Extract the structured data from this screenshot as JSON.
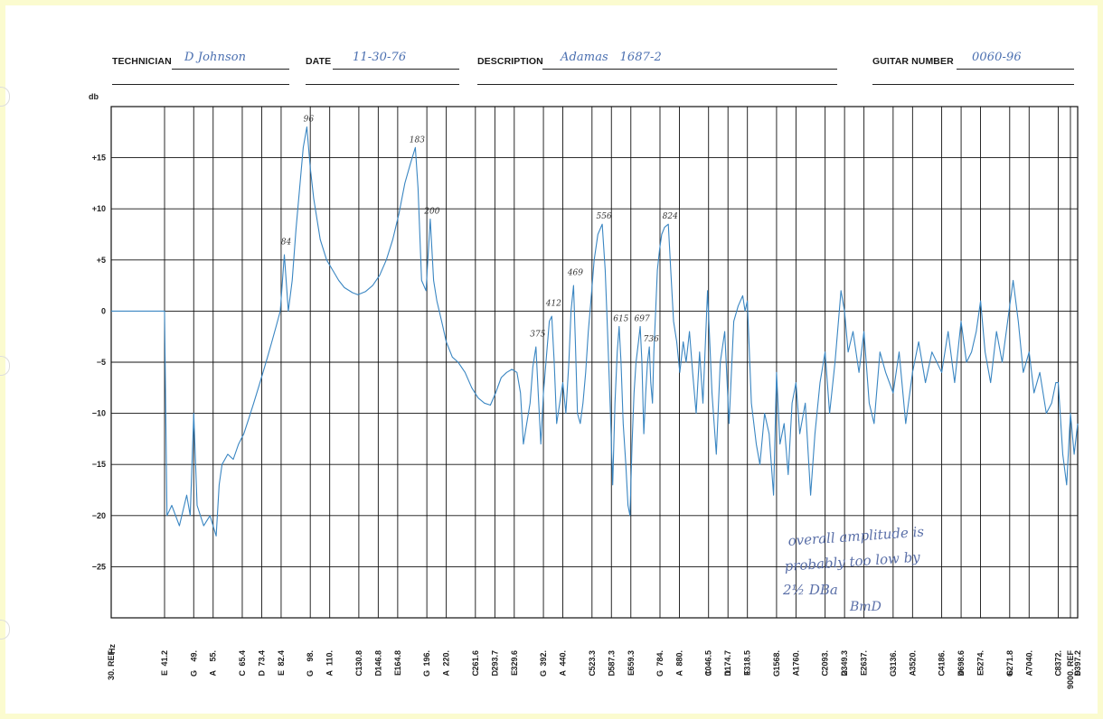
{
  "header": {
    "technician_label": "TECHNICIAN",
    "technician_value": "D Johnson",
    "date_label": "DATE",
    "date_value": "11-30-76",
    "description_label": "DESCRIPTION",
    "description_value": "Adamas   1687-2",
    "guitar_number_label": "GUITAR NUMBER",
    "guitar_number_value": "0060-96"
  },
  "annotation": {
    "line1": "overall amplitude is",
    "line2": "probably too low by",
    "line3": "2½ DBa",
    "signature": "BmD"
  },
  "chart_data": {
    "type": "line",
    "title": "",
    "xlabel": "Hz",
    "ylabel": "db",
    "ylim": [
      -30,
      20
    ],
    "yticks": [
      15,
      10,
      5,
      0,
      -5,
      -10,
      -15,
      -20,
      -25
    ],
    "ytick_labels": [
      "+15",
      "+10",
      "+5",
      "0",
      "−5",
      "−10",
      "−15",
      "−20",
      "−25"
    ],
    "x_scale": "log",
    "x_freq_ticks": [
      "30. REF",
      "41.2",
      "49.",
      "55.",
      "65.4",
      "73.4",
      "82.4",
      "98.",
      "110.",
      "130.8",
      "146.8",
      "164.8",
      "196.",
      "220.",
      "261.6",
      "293.7",
      "329.6",
      "392.",
      "440.",
      "523.3",
      "587.3",
      "659.3",
      "784.",
      "880.",
      "1046.5",
      "1174.7",
      "1318.5",
      "1568.",
      "1760.",
      "2093.",
      "2349.3",
      "2637.",
      "3136.",
      "3520.",
      "4186.",
      "4698.6",
      "5274.",
      "6271.8",
      "7040.",
      "8372.",
      "9000. REF",
      "9397.2"
    ],
    "x_note_ticks": [
      "",
      "E",
      "G",
      "A",
      "C",
      "D",
      "E",
      "G",
      "A",
      "C",
      "D",
      "E",
      "G",
      "A",
      "C",
      "D",
      "E",
      "G",
      "A",
      "C",
      "D",
      "E",
      "G",
      "A",
      "C",
      "D",
      "E",
      "G",
      "A",
      "C",
      "D",
      "E",
      "G",
      "A",
      "C",
      "D",
      "E",
      "G",
      "A",
      "C",
      "",
      "D"
    ],
    "peak_labels": [
      {
        "text": "84",
        "x": 84,
        "y": 6
      },
      {
        "text": "96",
        "x": 96,
        "y": 18
      },
      {
        "text": "183",
        "x": 183,
        "y": 16
      },
      {
        "text": "200",
        "x": 200,
        "y": 9
      },
      {
        "text": "375",
        "x": 375,
        "y": -3
      },
      {
        "text": "412",
        "x": 412,
        "y": 0
      },
      {
        "text": "469",
        "x": 469,
        "y": 3
      },
      {
        "text": "556",
        "x": 556,
        "y": 8.5
      },
      {
        "text": "615",
        "x": 615,
        "y": -1.5
      },
      {
        "text": "697",
        "x": 697,
        "y": -1.5
      },
      {
        "text": "736",
        "x": 736,
        "y": -3.5
      },
      {
        "text": "824",
        "x": 824,
        "y": 8.5
      }
    ],
    "series": [
      {
        "color": "#3a86c2",
        "points": [
          [
            30,
            0
          ],
          [
            40,
            0
          ],
          [
            41.2,
            0
          ],
          [
            41.8,
            -20
          ],
          [
            43,
            -19
          ],
          [
            45,
            -21
          ],
          [
            47,
            -18
          ],
          [
            48,
            -20
          ],
          [
            49,
            -10
          ],
          [
            50,
            -19
          ],
          [
            52,
            -21
          ],
          [
            54,
            -20
          ],
          [
            56,
            -22
          ],
          [
            57,
            -17
          ],
          [
            58,
            -15
          ],
          [
            60,
            -14
          ],
          [
            62,
            -14.5
          ],
          [
            64,
            -13
          ],
          [
            66,
            -12
          ],
          [
            68,
            -10.5
          ],
          [
            70,
            -9
          ],
          [
            72,
            -7.5
          ],
          [
            74,
            -6
          ],
          [
            76,
            -4.5
          ],
          [
            78,
            -3
          ],
          [
            80,
            -1.5
          ],
          [
            82,
            0
          ],
          [
            84,
            5.5
          ],
          [
            86,
            0
          ],
          [
            88,
            3
          ],
          [
            90,
            8
          ],
          [
            92,
            12
          ],
          [
            94,
            16
          ],
          [
            96,
            18
          ],
          [
            98,
            14
          ],
          [
            100,
            11
          ],
          [
            104,
            7
          ],
          [
            108,
            5
          ],
          [
            112,
            4
          ],
          [
            116,
            3
          ],
          [
            120,
            2.3
          ],
          [
            126,
            1.8
          ],
          [
            130,
            1.6
          ],
          [
            136,
            1.9
          ],
          [
            142,
            2.5
          ],
          [
            148,
            3.5
          ],
          [
            154,
            5
          ],
          [
            160,
            7
          ],
          [
            166,
            9.5
          ],
          [
            172,
            12.5
          ],
          [
            178,
            14.5
          ],
          [
            183,
            16
          ],
          [
            186,
            12
          ],
          [
            190,
            3
          ],
          [
            195,
            2
          ],
          [
            200,
            9
          ],
          [
            204,
            3
          ],
          [
            208,
            1
          ],
          [
            214,
            -1
          ],
          [
            220,
            -3
          ],
          [
            228,
            -4.5
          ],
          [
            236,
            -5
          ],
          [
            246,
            -6
          ],
          [
            256,
            -7.5
          ],
          [
            266,
            -8.5
          ],
          [
            276,
            -9
          ],
          [
            286,
            -9.2
          ],
          [
            295,
            -8
          ],
          [
            305,
            -6.5
          ],
          [
            315,
            -6
          ],
          [
            325,
            -5.7
          ],
          [
            335,
            -6
          ],
          [
            342,
            -8
          ],
          [
            348,
            -13
          ],
          [
            355,
            -11
          ],
          [
            362,
            -9
          ],
          [
            368,
            -5.5
          ],
          [
            375,
            -3.5
          ],
          [
            380,
            -8
          ],
          [
            386,
            -13
          ],
          [
            392,
            -8
          ],
          [
            400,
            -4
          ],
          [
            406,
            -1
          ],
          [
            412,
            -0.5
          ],
          [
            418,
            -5
          ],
          [
            424,
            -11
          ],
          [
            432,
            -9
          ],
          [
            440,
            -7
          ],
          [
            448,
            -10
          ],
          [
            456,
            -5
          ],
          [
            462,
            0
          ],
          [
            469,
            2.5
          ],
          [
            474,
            -3
          ],
          [
            480,
            -10
          ],
          [
            488,
            -11
          ],
          [
            496,
            -9
          ],
          [
            504,
            -6
          ],
          [
            512,
            -2
          ],
          [
            520,
            1
          ],
          [
            530,
            5
          ],
          [
            542,
            7.5
          ],
          [
            556,
            8.5
          ],
          [
            566,
            4
          ],
          [
            574,
            -2
          ],
          [
            584,
            -10
          ],
          [
            592,
            -17
          ],
          [
            600,
            -9
          ],
          [
            608,
            -4
          ],
          [
            615,
            -1.5
          ],
          [
            622,
            -5
          ],
          [
            630,
            -11
          ],
          [
            640,
            -15
          ],
          [
            648,
            -19
          ],
          [
            656,
            -20
          ],
          [
            664,
            -13
          ],
          [
            672,
            -8
          ],
          [
            680,
            -5
          ],
          [
            690,
            -3
          ],
          [
            697,
            -1.5
          ],
          [
            704,
            -5
          ],
          [
            712,
            -12
          ],
          [
            720,
            -8
          ],
          [
            728,
            -5
          ],
          [
            736,
            -3.5
          ],
          [
            742,
            -7
          ],
          [
            750,
            -9
          ],
          [
            756,
            -4
          ],
          [
            764,
            0
          ],
          [
            772,
            4
          ],
          [
            782,
            6
          ],
          [
            792,
            7.5
          ],
          [
            806,
            8.2
          ],
          [
            824,
            8.5
          ],
          [
            836,
            4
          ],
          [
            850,
            -1
          ],
          [
            866,
            -3
          ],
          [
            882,
            -6
          ],
          [
            900,
            -3
          ],
          [
            916,
            -5
          ],
          [
            934,
            -2
          ],
          [
            952,
            -6
          ],
          [
            972,
            -10
          ],
          [
            992,
            -4
          ],
          [
            1012,
            -9
          ],
          [
            1040,
            2
          ],
          [
            1068,
            -8
          ],
          [
            1096,
            -14
          ],
          [
            1122,
            -5
          ],
          [
            1152,
            -2
          ],
          [
            1182,
            -11
          ],
          [
            1216,
            -1
          ],
          [
            1248,
            0.5
          ],
          [
            1282,
            1.5
          ],
          [
            1300,
            0
          ],
          [
            1318,
            1
          ],
          [
            1350,
            -9
          ],
          [
            1390,
            -13
          ],
          [
            1420,
            -15
          ],
          [
            1460,
            -10
          ],
          [
            1500,
            -12
          ],
          [
            1540,
            -18
          ],
          [
            1568,
            -6
          ],
          [
            1600,
            -13
          ],
          [
            1640,
            -11
          ],
          [
            1680,
            -16
          ],
          [
            1720,
            -9
          ],
          [
            1760,
            -7
          ],
          [
            1800,
            -12
          ],
          [
            1860,
            -9
          ],
          [
            1920,
            -18
          ],
          [
            1970,
            -12
          ],
          [
            2030,
            -7
          ],
          [
            2093,
            -4
          ],
          [
            2150,
            -10
          ],
          [
            2220,
            -5
          ],
          [
            2300,
            2
          ],
          [
            2349,
            0
          ],
          [
            2400,
            -4
          ],
          [
            2470,
            -2
          ],
          [
            2560,
            -6
          ],
          [
            2637,
            -2
          ],
          [
            2720,
            -9
          ],
          [
            2800,
            -11
          ],
          [
            2900,
            -4
          ],
          [
            3000,
            -6
          ],
          [
            3136,
            -8
          ],
          [
            3250,
            -4
          ],
          [
            3380,
            -11
          ],
          [
            3520,
            -6
          ],
          [
            3650,
            -3
          ],
          [
            3800,
            -7
          ],
          [
            3950,
            -4
          ],
          [
            4186,
            -6
          ],
          [
            4350,
            -2
          ],
          [
            4520,
            -7
          ],
          [
            4698,
            -1
          ],
          [
            4850,
            -5
          ],
          [
            5000,
            -4
          ],
          [
            5140,
            -2
          ],
          [
            5274,
            1
          ],
          [
            5420,
            -4
          ],
          [
            5600,
            -7
          ],
          [
            5800,
            -2
          ],
          [
            6000,
            -5
          ],
          [
            6271,
            0.5
          ],
          [
            6400,
            3
          ],
          [
            6600,
            -1
          ],
          [
            6800,
            -6
          ],
          [
            7040,
            -4
          ],
          [
            7250,
            -8
          ],
          [
            7500,
            -6
          ],
          [
            7800,
            -10
          ],
          [
            8050,
            -9
          ],
          [
            8250,
            -7
          ],
          [
            8372,
            -7
          ],
          [
            8600,
            -14
          ],
          [
            8800,
            -17
          ],
          [
            9000,
            -10
          ],
          [
            9200,
            -14
          ],
          [
            9397,
            -11
          ]
        ]
      }
    ]
  }
}
